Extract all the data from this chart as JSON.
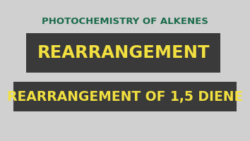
{
  "bg_color": "#d0d0d0",
  "title_text": "PHOTOCHEMISTRY OF ALKENES",
  "title_color": "#1a6b4a",
  "banner1_text": "REARRANGEMENT",
  "banner2_text": "REARRANGEMENT OF 1,5 DIENE",
  "banner_bg": "#3a3a3a",
  "banner_text_color": "#f2e040",
  "title_fontsize": 9.5,
  "banner1_fontsize": 17.5,
  "banner2_fontsize": 13.5
}
